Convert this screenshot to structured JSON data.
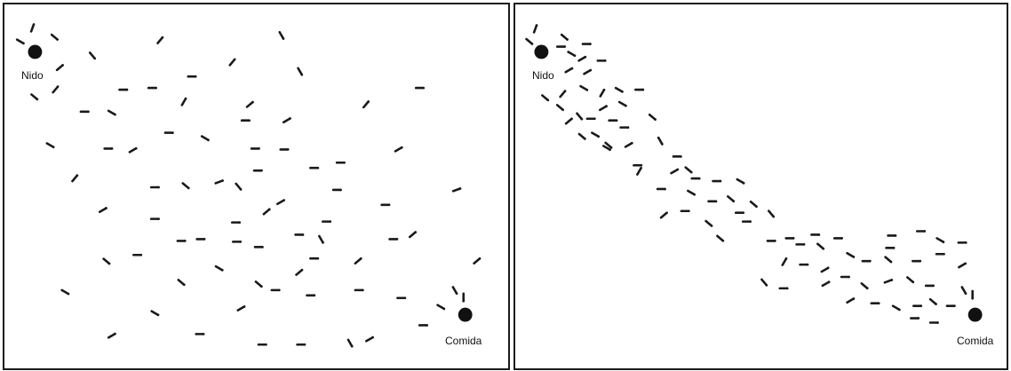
{
  "labels": {
    "nest": "Nido",
    "food": "Comida"
  },
  "panels": [
    {
      "id": "left",
      "state": "random-search"
    },
    {
      "id": "right",
      "state": "pheromone-trail"
    }
  ],
  "colors": {
    "ant": "#1a1a1a",
    "border": "#1a1a1a",
    "background": "#ffffff"
  }
}
